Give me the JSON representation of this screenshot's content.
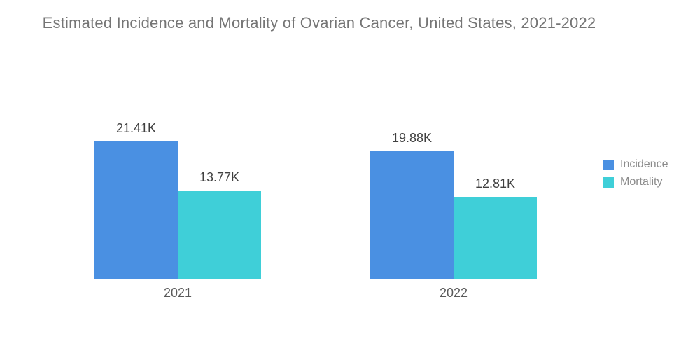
{
  "title": "Estimated Incidence and Mortality of Ovarian Cancer, United States, 2021-2022",
  "chart_data": {
    "type": "bar",
    "title": "Estimated Incidence and Mortality of Ovarian Cancer, United States, 2021-2022",
    "categories": [
      "2021",
      "2022"
    ],
    "series": [
      {
        "name": "Incidence",
        "color": "#4a90e2",
        "values": [
          21.41,
          19.88
        ],
        "labels": [
          "21.41K",
          "19.88K"
        ]
      },
      {
        "name": "Mortality",
        "color": "#3fcfd8",
        "values": [
          13.77,
          12.81
        ],
        "labels": [
          "13.77K",
          "12.81K"
        ]
      }
    ],
    "unit": "K",
    "ylim": [
      0,
      21.41
    ],
    "xlabel": "",
    "ylabel": "",
    "grid": false,
    "y_axis_visible": false,
    "legend_position": "right",
    "data_labels": "above bars"
  },
  "legend": {
    "items": [
      {
        "label": "Incidence",
        "color": "#4a90e2"
      },
      {
        "label": "Mortality",
        "color": "#3fcfd8"
      }
    ]
  },
  "colors": {
    "background": "#ffffff",
    "title_text": "#757575",
    "value_label_text": "#404040",
    "category_label_text": "#595959",
    "legend_text": "#8b8b8b",
    "incidence": "#4a90e2",
    "mortality": "#3fcfd8"
  }
}
